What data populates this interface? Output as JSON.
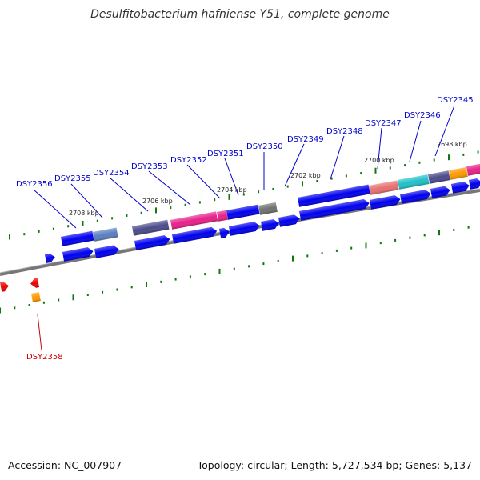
{
  "title": "Desulfitobacterium hafniense Y51, complete genome",
  "footer": {
    "accession": "Accession: NC_007907",
    "topology": "Topology: circular; Length: 5,727,534 bp; Genes: 5,137"
  },
  "kbp_labels": [
    "2708 kbp",
    "2706 kbp",
    "2704 kbp",
    "2702 kbp",
    "2700 kbp",
    "2698 kbp"
  ],
  "gene_labels": [
    "DSY2356",
    "DSY2355",
    "DSY2354",
    "DSY2353",
    "DSY2352",
    "DSY2351",
    "DSY2350",
    "DSY2349",
    "DSY2348",
    "DSY2347",
    "DSY2346",
    "DSY2345",
    "DSY2358"
  ],
  "colors": {
    "blue": "#0000ee",
    "steel": "#5a7fbf",
    "slate": "#4a4a8a",
    "pink": "#e8208a",
    "gray": "#707070",
    "salmon": "#e87070",
    "cyan": "#20c0c8",
    "orange": "#ff9900",
    "red": "#ee0000",
    "tick": "#117711",
    "backbone": "#777777",
    "label_blue": "#0000cc",
    "label_red": "#cc0000"
  }
}
